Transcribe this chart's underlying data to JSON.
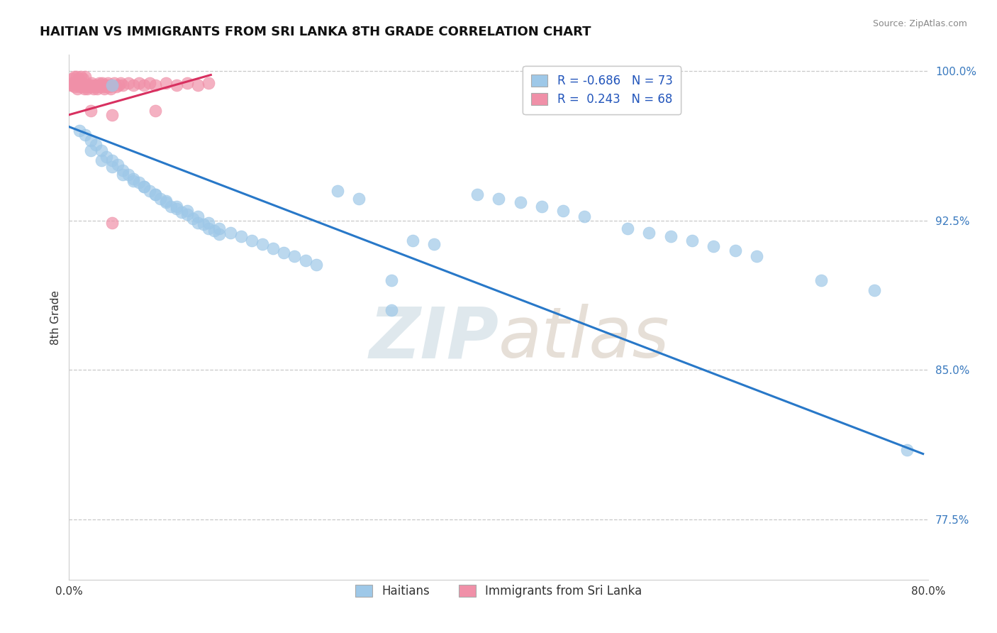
{
  "title": "HAITIAN VS IMMIGRANTS FROM SRI LANKA 8TH GRADE CORRELATION CHART",
  "source": "Source: ZipAtlas.com",
  "ylabel": "8th Grade",
  "x_min": 0.0,
  "x_max": 0.8,
  "y_min": 0.745,
  "y_max": 1.008,
  "x_ticks": [
    0.0,
    0.1,
    0.2,
    0.3,
    0.4,
    0.5,
    0.6,
    0.7,
    0.8
  ],
  "x_tick_labels": [
    "0.0%",
    "",
    "",
    "",
    "",
    "",
    "",
    "",
    "80.0%"
  ],
  "y_ticks": [
    0.775,
    0.85,
    0.925,
    1.0
  ],
  "y_tick_labels": [
    "77.5%",
    "85.0%",
    "92.5%",
    "100.0%"
  ],
  "legend_blue_r": "-0.686",
  "legend_blue_n": "73",
  "legend_pink_r": "0.243",
  "legend_pink_n": "68",
  "legend_label_blue": "Haitians",
  "legend_label_pink": "Immigrants from Sri Lanka",
  "blue_color": "#9ec8e8",
  "pink_color": "#f090a8",
  "blue_line_color": "#2878c8",
  "pink_line_color": "#d83060",
  "watermark_zip": "ZIP",
  "watermark_atlas": "atlas",
  "background_color": "#ffffff",
  "grid_color": "#c8c8c8",
  "blue_scatter_x": [
    0.01,
    0.015,
    0.02,
    0.025,
    0.03,
    0.035,
    0.04,
    0.045,
    0.05,
    0.055,
    0.06,
    0.065,
    0.07,
    0.075,
    0.08,
    0.085,
    0.09,
    0.095,
    0.1,
    0.105,
    0.11,
    0.115,
    0.12,
    0.125,
    0.13,
    0.135,
    0.14,
    0.02,
    0.03,
    0.04,
    0.05,
    0.06,
    0.07,
    0.08,
    0.09,
    0.1,
    0.11,
    0.12,
    0.13,
    0.14,
    0.15,
    0.16,
    0.17,
    0.18,
    0.19,
    0.2,
    0.21,
    0.22,
    0.23,
    0.25,
    0.27,
    0.32,
    0.34,
    0.38,
    0.4,
    0.42,
    0.44,
    0.46,
    0.48,
    0.52,
    0.54,
    0.56,
    0.58,
    0.6,
    0.62,
    0.64,
    0.7,
    0.75,
    0.78,
    0.04,
    0.3,
    0.3
  ],
  "blue_scatter_y": [
    0.97,
    0.968,
    0.965,
    0.963,
    0.96,
    0.957,
    0.955,
    0.953,
    0.95,
    0.948,
    0.946,
    0.944,
    0.942,
    0.94,
    0.938,
    0.936,
    0.934,
    0.932,
    0.931,
    0.929,
    0.928,
    0.926,
    0.924,
    0.923,
    0.921,
    0.92,
    0.918,
    0.96,
    0.955,
    0.952,
    0.948,
    0.945,
    0.942,
    0.938,
    0.935,
    0.932,
    0.93,
    0.927,
    0.924,
    0.921,
    0.919,
    0.917,
    0.915,
    0.913,
    0.911,
    0.909,
    0.907,
    0.905,
    0.903,
    0.94,
    0.936,
    0.915,
    0.913,
    0.938,
    0.936,
    0.934,
    0.932,
    0.93,
    0.927,
    0.921,
    0.919,
    0.917,
    0.915,
    0.912,
    0.91,
    0.907,
    0.895,
    0.89,
    0.81,
    0.993,
    0.895,
    0.88
  ],
  "pink_scatter_x": [
    0.002,
    0.003,
    0.004,
    0.005,
    0.006,
    0.007,
    0.008,
    0.009,
    0.01,
    0.011,
    0.012,
    0.013,
    0.014,
    0.015,
    0.016,
    0.017,
    0.018,
    0.019,
    0.02,
    0.021,
    0.022,
    0.023,
    0.024,
    0.025,
    0.026,
    0.027,
    0.028,
    0.029,
    0.03,
    0.031,
    0.032,
    0.033,
    0.034,
    0.035,
    0.036,
    0.037,
    0.038,
    0.039,
    0.04,
    0.042,
    0.044,
    0.046,
    0.048,
    0.05,
    0.055,
    0.06,
    0.065,
    0.07,
    0.075,
    0.08,
    0.09,
    0.1,
    0.11,
    0.12,
    0.13,
    0.003,
    0.005,
    0.007,
    0.009,
    0.011,
    0.013,
    0.015,
    0.02,
    0.04,
    0.08,
    0.04
  ],
  "pink_scatter_y": [
    0.993,
    0.994,
    0.993,
    0.992,
    0.994,
    0.993,
    0.991,
    0.993,
    0.992,
    0.993,
    0.994,
    0.992,
    0.991,
    0.993,
    0.992,
    0.991,
    0.993,
    0.992,
    0.993,
    0.994,
    0.992,
    0.991,
    0.993,
    0.992,
    0.991,
    0.993,
    0.994,
    0.992,
    0.993,
    0.994,
    0.992,
    0.991,
    0.993,
    0.992,
    0.994,
    0.993,
    0.992,
    0.991,
    0.993,
    0.994,
    0.992,
    0.993,
    0.994,
    0.993,
    0.994,
    0.993,
    0.994,
    0.993,
    0.994,
    0.993,
    0.994,
    0.993,
    0.994,
    0.993,
    0.994,
    0.996,
    0.997,
    0.997,
    0.996,
    0.997,
    0.996,
    0.997,
    0.98,
    0.978,
    0.98,
    0.924
  ],
  "blue_trend_x": [
    0.0,
    0.795
  ],
  "blue_trend_y": [
    0.972,
    0.808
  ],
  "pink_trend_x": [
    0.0,
    0.132
  ],
  "pink_trend_y": [
    0.978,
    0.998
  ]
}
